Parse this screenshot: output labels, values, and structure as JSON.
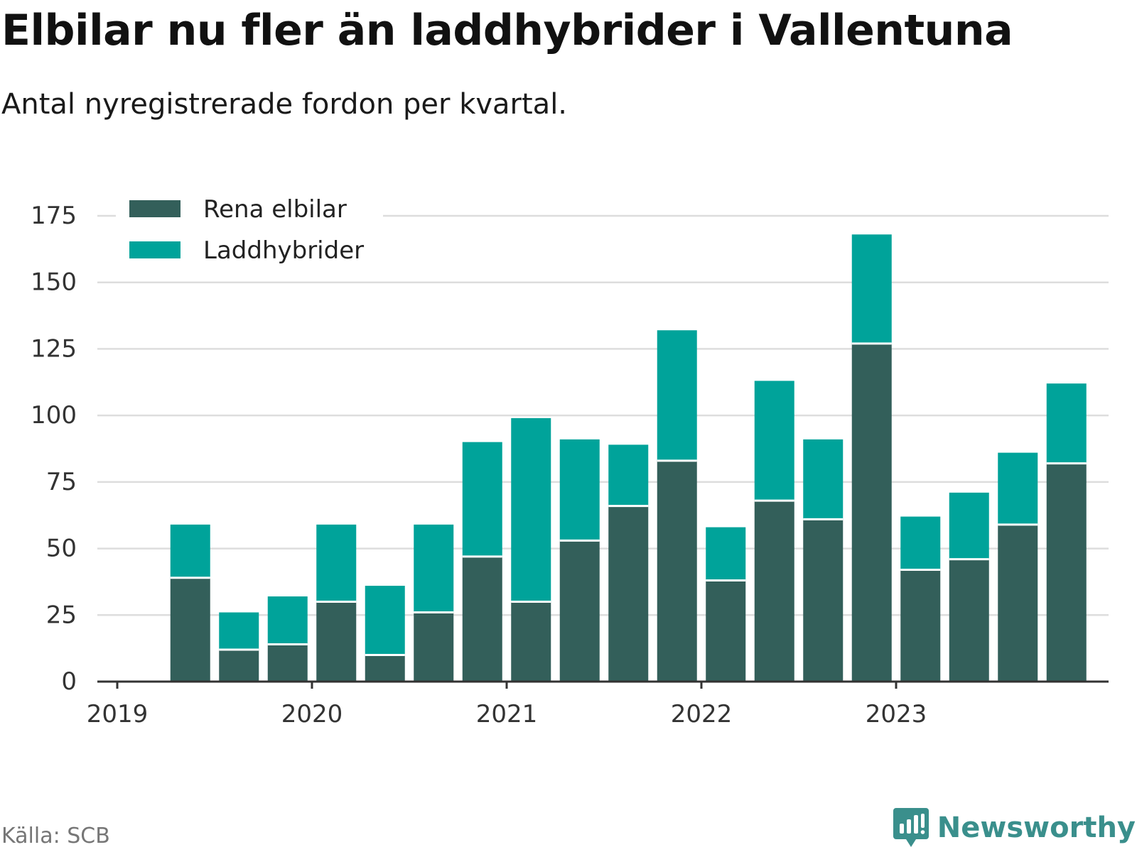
{
  "header": {
    "title": "Elbilar nu fler än laddhybrider i Vallentuna",
    "subtitle": "Antal nyregistrerade fordon per kvartal."
  },
  "footer": {
    "source": "Källa: SCB",
    "brand": "Newsworthy",
    "brand_icon": "newsworthy-logo-icon"
  },
  "chart_data": {
    "type": "bar",
    "stacked": true,
    "title": "Elbilar nu fler än laddhybrider i Vallentuna",
    "subtitle": "Antal nyregistrerade fordon per kvartal.",
    "xlabel": "",
    "ylabel": "",
    "categories": [
      "2019 Q2",
      "2019 Q3",
      "2019 Q4",
      "2020 Q1",
      "2020 Q2",
      "2020 Q3",
      "2020 Q4",
      "2021 Q1",
      "2021 Q2",
      "2021 Q3",
      "2021 Q4",
      "2022 Q1",
      "2022 Q2",
      "2022 Q3",
      "2022 Q4",
      "2023 Q1",
      "2023 Q2",
      "2023 Q3",
      "2023 Q4"
    ],
    "x_ticks": [
      "2019",
      "2020",
      "2021",
      "2022",
      "2023"
    ],
    "y_ticks": [
      0,
      25,
      50,
      75,
      100,
      125,
      150,
      175
    ],
    "ylim": [
      0,
      175
    ],
    "grid": true,
    "legend_position": "top-left",
    "series": [
      {
        "name": "Rena elbilar",
        "color": "#335f5a",
        "values": [
          39,
          12,
          14,
          30,
          10,
          26,
          47,
          30,
          53,
          66,
          83,
          38,
          68,
          61,
          127,
          42,
          46,
          59,
          82
        ]
      },
      {
        "name": "Laddhybrider",
        "color": "#00a39a",
        "values": [
          20,
          14,
          18,
          29,
          26,
          33,
          43,
          69,
          38,
          23,
          49,
          20,
          45,
          30,
          41,
          20,
          25,
          27,
          30
        ]
      }
    ]
  }
}
